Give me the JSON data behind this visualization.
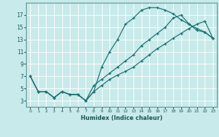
{
  "xlabel": "Humidex (Indice chaleur)",
  "bg_color": "#c8eaea",
  "grid_color": "#ffffff",
  "line_color": "#1a7070",
  "xlim": [
    -0.5,
    23.5
  ],
  "ylim": [
    2.0,
    19.0
  ],
  "xticks": [
    0,
    1,
    2,
    3,
    4,
    5,
    6,
    7,
    8,
    9,
    10,
    11,
    12,
    13,
    14,
    15,
    16,
    17,
    18,
    19,
    20,
    21,
    22,
    23
  ],
  "yticks": [
    3,
    5,
    7,
    9,
    11,
    13,
    15,
    17
  ],
  "line1_x": [
    0,
    1,
    2,
    3,
    4,
    5,
    6,
    7,
    8,
    9,
    10,
    11,
    12,
    13,
    14,
    15,
    16,
    17,
    18,
    19,
    20,
    21,
    22,
    23
  ],
  "line1_y": [
    7,
    4.5,
    4.5,
    3.5,
    4.5,
    4.0,
    4.0,
    3.0,
    4.5,
    8.5,
    11.0,
    13.0,
    15.5,
    16.5,
    17.8,
    18.2,
    18.2,
    17.8,
    17.2,
    16.2,
    15.5,
    14.5,
    14.2,
    13.2
  ],
  "line2_x": [
    0,
    1,
    2,
    3,
    4,
    5,
    6,
    7,
    8,
    9,
    10,
    11,
    12,
    13,
    14,
    15,
    16,
    17,
    18,
    19,
    20,
    21,
    22,
    23
  ],
  "line2_y": [
    7,
    4.5,
    4.5,
    3.5,
    4.5,
    4.0,
    4.0,
    3.0,
    5.5,
    6.5,
    7.5,
    8.5,
    9.5,
    10.5,
    12.0,
    13.0,
    14.0,
    15.0,
    16.5,
    17.0,
    15.5,
    14.8,
    14.2,
    13.2
  ],
  "line3_x": [
    0,
    1,
    2,
    3,
    4,
    5,
    6,
    7,
    8,
    9,
    10,
    11,
    12,
    13,
    14,
    15,
    16,
    17,
    18,
    19,
    20,
    21,
    22,
    23
  ],
  "line3_y": [
    7,
    4.5,
    4.5,
    3.5,
    4.5,
    4.0,
    4.0,
    3.0,
    4.5,
    5.5,
    6.5,
    7.2,
    7.8,
    8.5,
    9.5,
    10.5,
    11.5,
    12.3,
    13.2,
    14.0,
    14.8,
    15.5,
    16.0,
    13.2
  ]
}
